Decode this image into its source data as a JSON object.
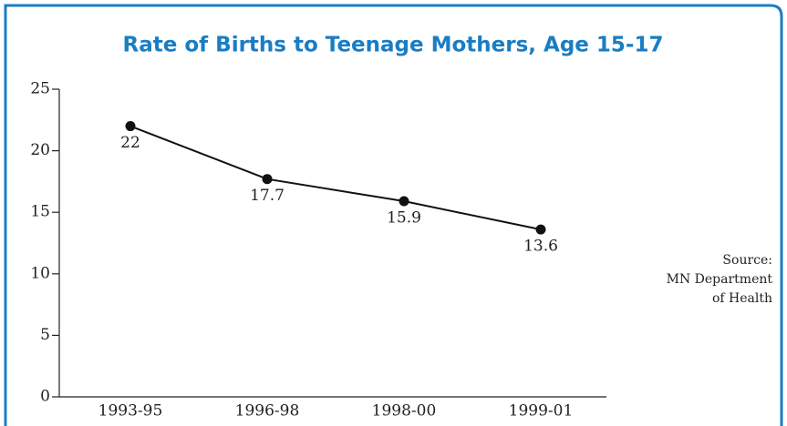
{
  "chart_data": {
    "type": "line",
    "title": "Rate of Births to Teenage Mothers, Age 15-17",
    "categories": [
      "1993-95",
      "1996-98",
      "1998-00",
      "1999-01"
    ],
    "values": [
      22,
      17.7,
      15.9,
      13.6
    ],
    "color": "#111111",
    "ylim": [
      0,
      25
    ],
    "yticks": [
      0,
      5,
      10,
      15,
      20,
      25
    ],
    "source": [
      "Source:",
      "MN Department",
      "of Health"
    ]
  }
}
